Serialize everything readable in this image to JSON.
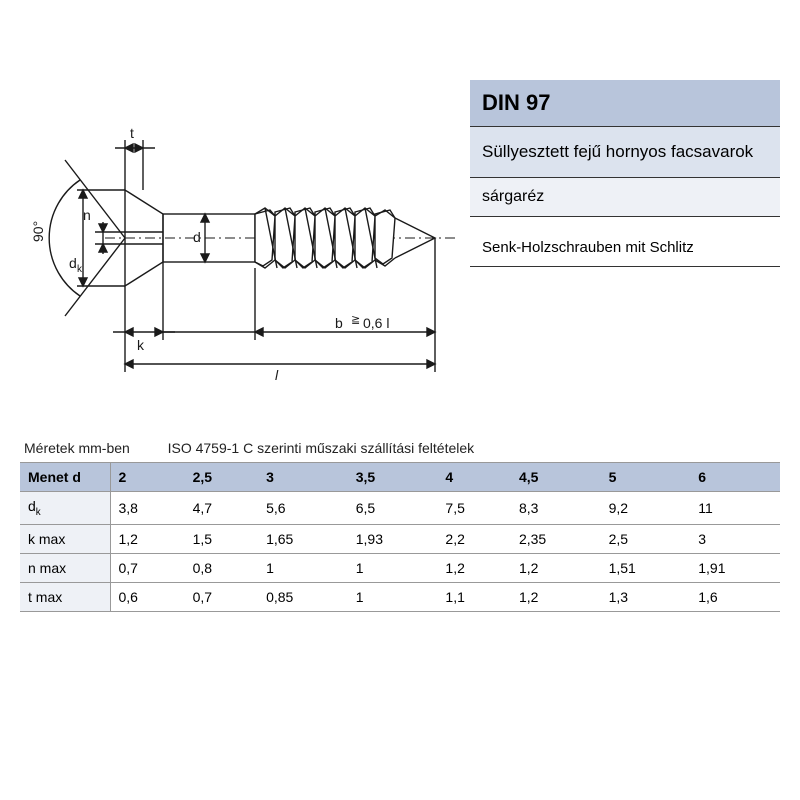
{
  "info": {
    "standard": "DIN 97",
    "title": "Süllyesztett fejű hornyos facsavarok",
    "material": "sárgaréz",
    "german": "Senk-Holzschrauben mit Schlitz"
  },
  "caption": {
    "units": "Méretek mm-ben",
    "iso": "ISO 4759-1 C szerinti műszaki szállítási feltételek"
  },
  "diagram_labels": {
    "angle": "90°",
    "t": "t",
    "n": "n",
    "dk": "dₖ",
    "d": "d",
    "k": "k",
    "b": "b",
    "b_note": "0,6 l",
    "l": "l",
    "gte": "≧"
  },
  "table": {
    "header_label": "Menet d",
    "columns": [
      "2",
      "2,5",
      "3",
      "3,5",
      "4",
      "4,5",
      "5",
      "6"
    ],
    "rows": [
      {
        "label": "dₖ",
        "values": [
          "3,8",
          "4,7",
          "5,6",
          "6,5",
          "7,5",
          "8,3",
          "9,2",
          "11"
        ]
      },
      {
        "label": "k max",
        "values": [
          "1,2",
          "1,5",
          "1,65",
          "1,93",
          "2,2",
          "2,35",
          "2,5",
          "3"
        ]
      },
      {
        "label": "n max",
        "values": [
          "0,7",
          "0,8",
          "1",
          "1",
          "1,2",
          "1,2",
          "1,51",
          "1,91"
        ]
      },
      {
        "label": "t max",
        "values": [
          "0,6",
          "0,7",
          "0,85",
          "1",
          "1,1",
          "1,2",
          "1,3",
          "1,6"
        ]
      }
    ]
  },
  "colors": {
    "header_bg": "#b8c5db",
    "sub1_bg": "#dce3ee",
    "sub2_bg": "#eef1f6",
    "line": "#1a1a1a"
  }
}
